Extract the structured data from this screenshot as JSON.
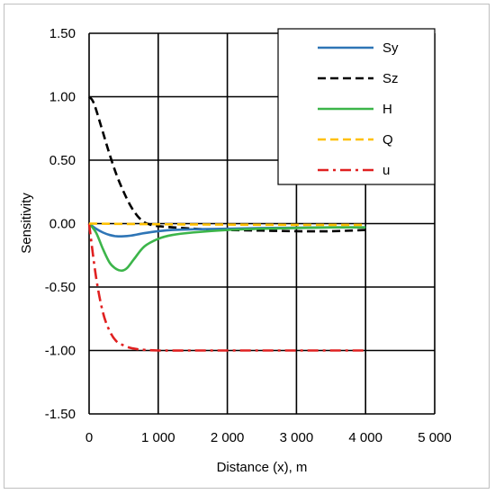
{
  "chart_data": {
    "type": "line",
    "xlabel": "Distance (x), m",
    "ylabel": "Sensitivity",
    "xlim": [
      0,
      5000
    ],
    "ylim": [
      -1.5,
      1.5
    ],
    "x_ticks": [
      0,
      1000,
      2000,
      3000,
      4000,
      5000
    ],
    "x_tick_labels": [
      "0",
      "1 000",
      "2 000",
      "3 000",
      "4 000",
      "5 000"
    ],
    "y_ticks": [
      1.5,
      1.0,
      0.5,
      0.0,
      -0.5,
      -1.0,
      -1.5
    ],
    "y_tick_labels": [
      "1.50",
      "1.00",
      "0.50",
      "0.00",
      "-0.50",
      "-1.00",
      "-1.50"
    ],
    "grid": true,
    "legend_position": "top-right",
    "series": [
      {
        "name": "Sy",
        "color": "#2e75b6",
        "dash": "solid",
        "x": [
          0,
          100,
          200,
          300,
          400,
          500,
          600,
          700,
          800,
          1000,
          1200,
          1500,
          2000,
          2500,
          3000,
          3500,
          4000
        ],
        "y": [
          0,
          -0.04,
          -0.07,
          -0.09,
          -0.1,
          -0.1,
          -0.095,
          -0.085,
          -0.075,
          -0.06,
          -0.05,
          -0.045,
          -0.04,
          -0.035,
          -0.032,
          -0.03,
          -0.03
        ]
      },
      {
        "name": "Sz",
        "color": "#000000",
        "dash": "dashed",
        "x": [
          0,
          50,
          100,
          200,
          300,
          400,
          500,
          600,
          700,
          800,
          900,
          1000,
          1500,
          2000,
          2500,
          3000,
          3500,
          4000
        ],
        "y": [
          1.0,
          0.97,
          0.9,
          0.72,
          0.54,
          0.38,
          0.25,
          0.14,
          0.06,
          0.01,
          -0.01,
          -0.02,
          -0.04,
          -0.05,
          -0.055,
          -0.06,
          -0.06,
          -0.05
        ]
      },
      {
        "name": "H",
        "color": "#3cb54a",
        "dash": "solid",
        "x": [
          0,
          100,
          200,
          300,
          400,
          480,
          550,
          650,
          800,
          1000,
          1200,
          1500,
          2000,
          2500,
          3000,
          3500,
          4000
        ],
        "y": [
          0,
          -0.07,
          -0.2,
          -0.31,
          -0.36,
          -0.37,
          -0.35,
          -0.28,
          -0.18,
          -0.12,
          -0.09,
          -0.07,
          -0.05,
          -0.04,
          -0.035,
          -0.03,
          -0.03
        ]
      },
      {
        "name": "Q",
        "color": "#ffc000",
        "dash": "dashed",
        "x": [
          0,
          1000,
          2000,
          3000,
          4000
        ],
        "y": [
          0,
          -0.005,
          -0.008,
          -0.01,
          -0.01
        ]
      },
      {
        "name": "u",
        "color": "#e02020",
        "dash": "dashdot",
        "x": [
          0,
          100,
          200,
          300,
          400,
          500,
          600,
          700,
          800,
          1000,
          1500,
          2000,
          2500,
          3000,
          3500,
          4000
        ],
        "y": [
          0,
          -0.42,
          -0.7,
          -0.85,
          -0.93,
          -0.96,
          -0.98,
          -0.99,
          -0.995,
          -1.0,
          -1.0,
          -1.0,
          -1.0,
          -1.0,
          -1.0,
          -1.0
        ]
      }
    ]
  }
}
